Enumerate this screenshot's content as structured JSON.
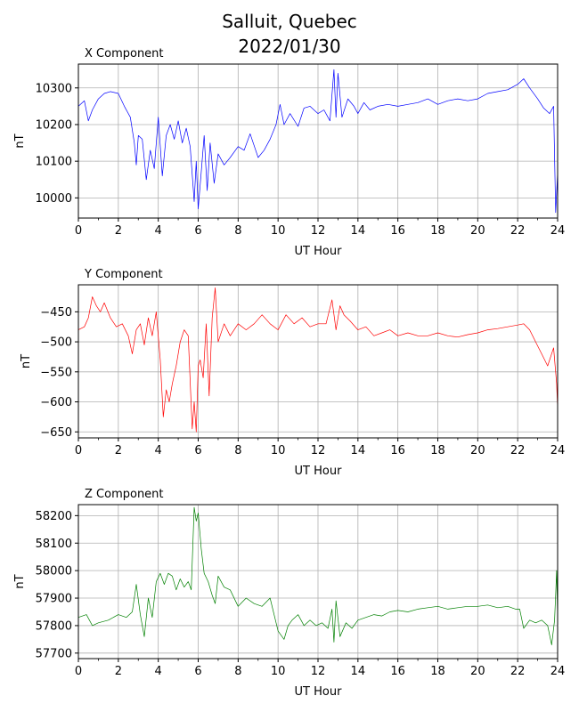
{
  "figure": {
    "title_line1": "Salluit, Quebec",
    "title_line2": "2022/01/30"
  },
  "chart_data": [
    {
      "type": "line",
      "title": "X Component",
      "xlabel": "UT Hour",
      "ylabel": "nT",
      "color": "#0000ff",
      "xlim": [
        0,
        24
      ],
      "ylim": [
        9945,
        10365
      ],
      "xticks": [
        0,
        2,
        4,
        6,
        8,
        10,
        12,
        14,
        16,
        18,
        20,
        22,
        24
      ],
      "yticks": [
        10000,
        10100,
        10200,
        10300
      ],
      "grid": true,
      "series": [
        {
          "x": [
            0,
            0.3,
            0.5,
            0.7,
            1.0,
            1.3,
            1.6,
            2.0,
            2.3,
            2.6,
            2.8,
            2.9,
            3.0,
            3.2,
            3.4,
            3.6,
            3.8,
            4.0,
            4.2,
            4.4,
            4.6,
            4.8,
            5.0,
            5.2,
            5.4,
            5.6,
            5.8,
            5.9,
            6.0,
            6.15,
            6.3,
            6.45,
            6.6,
            6.8,
            7.0,
            7.3,
            7.6,
            8.0,
            8.3,
            8.6,
            9.0,
            9.3,
            9.6,
            9.9,
            10.1,
            10.3,
            10.6,
            11.0,
            11.3,
            11.6,
            12.0,
            12.3,
            12.6,
            12.8,
            12.9,
            13.0,
            13.2,
            13.5,
            13.8,
            14.0,
            14.3,
            14.6,
            15.0,
            15.5,
            16.0,
            16.5,
            17.0,
            17.5,
            18.0,
            18.5,
            19.0,
            19.5,
            20.0,
            20.5,
            21.0,
            21.5,
            22.0,
            22.3,
            22.6,
            23.0,
            23.3,
            23.6,
            23.8,
            23.9,
            24.0
          ],
          "y": [
            10250,
            10265,
            10210,
            10240,
            10270,
            10285,
            10290,
            10285,
            10250,
            10220,
            10150,
            10090,
            10170,
            10160,
            10050,
            10130,
            10080,
            10220,
            10060,
            10170,
            10200,
            10160,
            10210,
            10150,
            10190,
            10140,
            9990,
            10100,
            9970,
            10070,
            10170,
            10020,
            10150,
            10040,
            10120,
            10090,
            10110,
            10140,
            10130,
            10175,
            10110,
            10130,
            10160,
            10200,
            10255,
            10200,
            10230,
            10195,
            10245,
            10250,
            10230,
            10240,
            10210,
            10350,
            10220,
            10340,
            10220,
            10270,
            10250,
            10230,
            10260,
            10240,
            10250,
            10255,
            10250,
            10255,
            10260,
            10270,
            10255,
            10265,
            10270,
            10265,
            10270,
            10285,
            10290,
            10295,
            10310,
            10325,
            10300,
            10270,
            10245,
            10230,
            10250,
            9960,
            10070
          ]
        }
      ]
    },
    {
      "type": "line",
      "title": "Y Component",
      "xlabel": "UT Hour",
      "ylabel": "nT",
      "color": "#ff0000",
      "xlim": [
        0,
        24
      ],
      "ylim": [
        -660,
        -405
      ],
      "xticks": [
        0,
        2,
        4,
        6,
        8,
        10,
        12,
        14,
        16,
        18,
        20,
        22,
        24
      ],
      "yticks": [
        -650,
        -600,
        -550,
        -500,
        -450
      ],
      "grid": true,
      "series": [
        {
          "x": [
            0,
            0.3,
            0.5,
            0.7,
            0.9,
            1.1,
            1.3,
            1.6,
            1.9,
            2.2,
            2.5,
            2.7,
            2.9,
            3.1,
            3.3,
            3.5,
            3.7,
            3.9,
            4.1,
            4.25,
            4.4,
            4.55,
            4.7,
            4.9,
            5.1,
            5.3,
            5.5,
            5.7,
            5.8,
            5.9,
            6.0,
            6.1,
            6.25,
            6.4,
            6.55,
            6.7,
            6.85,
            7.0,
            7.3,
            7.6,
            8.0,
            8.4,
            8.8,
            9.2,
            9.6,
            10.0,
            10.4,
            10.8,
            11.2,
            11.6,
            12.0,
            12.4,
            12.7,
            12.9,
            13.1,
            13.3,
            13.6,
            14.0,
            14.4,
            14.8,
            15.2,
            15.6,
            16.0,
            16.5,
            17.0,
            17.5,
            18.0,
            18.5,
            19.0,
            19.5,
            20.0,
            20.5,
            21.0,
            21.5,
            22.0,
            22.3,
            22.6,
            22.9,
            23.2,
            23.5,
            23.8,
            23.95,
            24.0
          ],
          "y": [
            -480,
            -475,
            -460,
            -425,
            -440,
            -450,
            -435,
            -460,
            -475,
            -470,
            -490,
            -520,
            -480,
            -470,
            -505,
            -460,
            -490,
            -450,
            -530,
            -625,
            -580,
            -600,
            -570,
            -540,
            -500,
            -480,
            -490,
            -645,
            -600,
            -650,
            -540,
            -530,
            -560,
            -470,
            -590,
            -460,
            -410,
            -500,
            -470,
            -490,
            -470,
            -480,
            -470,
            -455,
            -470,
            -480,
            -455,
            -470,
            -460,
            -475,
            -470,
            -470,
            -430,
            -480,
            -440,
            -455,
            -465,
            -480,
            -475,
            -490,
            -485,
            -480,
            -490,
            -485,
            -490,
            -490,
            -485,
            -490,
            -492,
            -488,
            -485,
            -480,
            -478,
            -475,
            -472,
            -470,
            -480,
            -500,
            -520,
            -540,
            -510,
            -570,
            -610
          ]
        }
      ]
    },
    {
      "type": "line",
      "title": "Z Component",
      "xlabel": "UT Hour",
      "ylabel": "nT",
      "color": "#008000",
      "xlim": [
        0,
        24
      ],
      "ylim": [
        57680,
        58240
      ],
      "xticks": [
        0,
        2,
        4,
        6,
        8,
        10,
        12,
        14,
        16,
        18,
        20,
        22,
        24
      ],
      "yticks": [
        57700,
        57800,
        57900,
        58000,
        58100,
        58200
      ],
      "grid": true,
      "series": [
        {
          "x": [
            0,
            0.4,
            0.7,
            1.0,
            1.5,
            2.0,
            2.4,
            2.7,
            2.9,
            3.1,
            3.3,
            3.5,
            3.7,
            3.9,
            4.1,
            4.3,
            4.5,
            4.7,
            4.9,
            5.1,
            5.3,
            5.5,
            5.65,
            5.8,
            5.9,
            6.0,
            6.15,
            6.3,
            6.5,
            6.7,
            6.85,
            7.0,
            7.3,
            7.6,
            8.0,
            8.4,
            8.8,
            9.2,
            9.6,
            10.0,
            10.3,
            10.5,
            10.7,
            11.0,
            11.3,
            11.6,
            11.9,
            12.2,
            12.5,
            12.7,
            12.8,
            12.9,
            13.1,
            13.4,
            13.7,
            14.0,
            14.4,
            14.8,
            15.2,
            15.6,
            16.0,
            16.5,
            17.0,
            17.5,
            18.0,
            18.5,
            19.0,
            19.5,
            20.0,
            20.5,
            21.0,
            21.5,
            21.9,
            22.1,
            22.3,
            22.6,
            22.9,
            23.2,
            23.5,
            23.7,
            23.85,
            23.95,
            24.0
          ],
          "y": [
            57830,
            57840,
            57800,
            57810,
            57820,
            57840,
            57830,
            57850,
            57950,
            57840,
            57760,
            57900,
            57830,
            57960,
            57990,
            57950,
            57990,
            57980,
            57930,
            57970,
            57940,
            57960,
            57930,
            58230,
            58180,
            58210,
            58080,
            57990,
            57960,
            57910,
            57880,
            57980,
            57940,
            57930,
            57870,
            57900,
            57880,
            57870,
            57900,
            57780,
            57750,
            57800,
            57820,
            57840,
            57800,
            57820,
            57800,
            57810,
            57790,
            57860,
            57740,
            57890,
            57760,
            57810,
            57790,
            57820,
            57830,
            57840,
            57835,
            57850,
            57855,
            57850,
            57860,
            57865,
            57870,
            57860,
            57865,
            57870,
            57870,
            57875,
            57865,
            57870,
            57860,
            57860,
            57790,
            57820,
            57810,
            57820,
            57800,
            57730,
            57820,
            58000,
            57830
          ]
        }
      ]
    }
  ]
}
